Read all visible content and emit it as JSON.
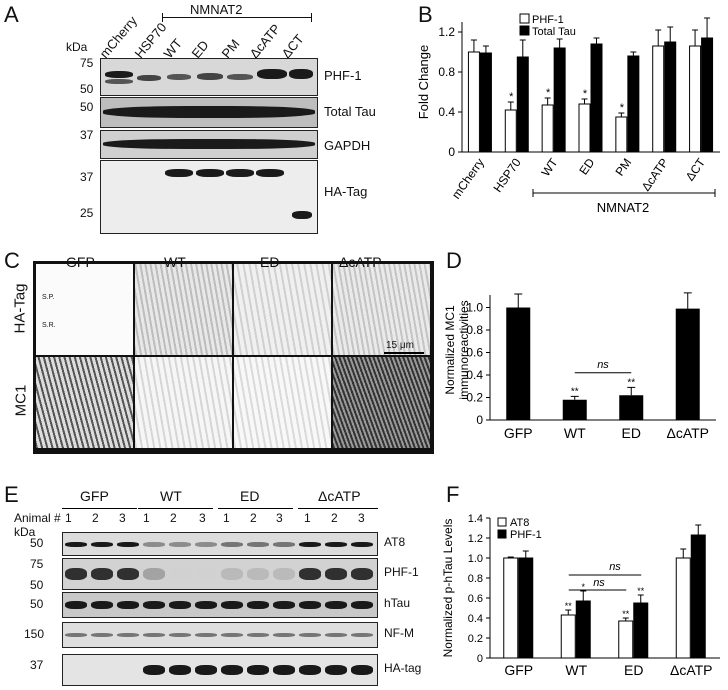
{
  "panelA": {
    "letter": "A",
    "group_label": "NMNAT2",
    "lanes": [
      "mCherry",
      "HSP70",
      "WT",
      "ED",
      "PM",
      "ΔcATP",
      "ΔCT"
    ],
    "kda_header": "kDa",
    "blots": [
      {
        "label": "PHF-1",
        "markers": [
          "75",
          "50"
        ]
      },
      {
        "label": "Total Tau",
        "markers": [
          "50"
        ]
      },
      {
        "label": "GAPDH",
        "markers": [
          "37"
        ]
      },
      {
        "label": "HA-Tag",
        "markers": [
          "37",
          "25"
        ]
      }
    ]
  },
  "panelB": {
    "letter": "B",
    "ylabel": "Fold Change",
    "group_label": "NMNAT2",
    "legend": [
      "PHF-1",
      "Total Tau"
    ]
  },
  "panelC": {
    "letter": "C",
    "columns": [
      "GFP",
      "WT",
      "ED",
      "ΔcATP"
    ],
    "rows": [
      "HA-Tag",
      "MC1"
    ],
    "sp_label": "S.P.",
    "sr_label": "S.R.",
    "scale_label": "15 μm"
  },
  "panelD": {
    "letter": "D",
    "ylabel_line1": "Normalized MC1",
    "ylabel_line2": "immunoreactivities",
    "ns": "ns"
  },
  "panelE": {
    "letter": "E",
    "groups": [
      "GFP",
      "WT",
      "ED",
      "ΔcATP"
    ],
    "animal_label": "Animal #",
    "animal_numbers": [
      "1",
      "2",
      "3"
    ],
    "kda_header": "kDa",
    "blots": [
      {
        "label": "AT8",
        "markers": [
          "50"
        ]
      },
      {
        "label": "PHF-1",
        "markers": [
          "75",
          "50"
        ]
      },
      {
        "label": "hTau",
        "markers": [
          "50"
        ]
      },
      {
        "label": "NF-M",
        "markers": [
          "150"
        ]
      },
      {
        "label": "HA-tag",
        "markers": [
          "37"
        ]
      }
    ]
  },
  "panelF": {
    "letter": "F",
    "ylabel": "Normalized p-hTau Levels",
    "legend": [
      "AT8",
      "PHF-1"
    ],
    "ns": "ns"
  },
  "chart_data": [
    {
      "type": "bar",
      "categories": [
        "mCherry",
        "HSP70",
        "WT",
        "ED",
        "PM",
        "ΔcATP",
        "ΔCT"
      ],
      "series": [
        {
          "name": "PHF-1",
          "values": [
            1.0,
            0.42,
            0.47,
            0.48,
            0.35,
            1.06,
            1.06
          ],
          "errors": [
            0.12,
            0.08,
            0.07,
            0.05,
            0.04,
            0.16,
            0.16
          ],
          "color": "#ffffff"
        },
        {
          "name": "Total Tau",
          "values": [
            0.99,
            0.95,
            1.04,
            1.08,
            0.96,
            1.1,
            1.14
          ],
          "errors": [
            0.07,
            0.17,
            0.09,
            0.06,
            0.04,
            0.15,
            0.2
          ],
          "color": "#000000"
        }
      ],
      "significance": [
        "",
        "*",
        "*",
        "*",
        "*",
        "",
        ""
      ],
      "ylim": [
        0,
        1.4
      ],
      "yticks": [
        "0",
        "0.4",
        "0.8",
        "1.2"
      ]
    },
    {
      "type": "bar",
      "categories": [
        "GFP",
        "WT",
        "ED",
        "ΔcATP"
      ],
      "values": [
        1.0,
        0.18,
        0.22,
        0.99
      ],
      "errors": [
        0.12,
        0.03,
        0.07,
        0.14
      ],
      "significance": [
        "",
        "**",
        "**",
        ""
      ],
      "ylim": [
        0,
        1.2
      ],
      "yticks": [
        "0",
        "0.2",
        "0.4",
        "0.6",
        "0.8",
        "1.0"
      ]
    },
    {
      "type": "bar",
      "categories": [
        "GFP",
        "WT",
        "ED",
        "ΔcATP"
      ],
      "series": [
        {
          "name": "AT8",
          "values": [
            1.0,
            0.43,
            0.37,
            1.0
          ],
          "errors": [
            0.01,
            0.05,
            0.03,
            0.09
          ],
          "color": "#ffffff"
        },
        {
          "name": "PHF-1",
          "values": [
            1.0,
            0.57,
            0.55,
            1.23
          ],
          "errors": [
            0.07,
            0.1,
            0.08,
            0.1
          ],
          "color": "#000000"
        }
      ],
      "significance": [
        [
          "",
          ""
        ],
        [
          "**",
          "*"
        ],
        [
          "**",
          "**"
        ],
        [
          "",
          ""
        ]
      ],
      "ylim": [
        0,
        1.4
      ],
      "yticks": [
        "0",
        "0.2",
        "0.4",
        "0.6",
        "0.8",
        "1.0",
        "1.2",
        "1.4"
      ]
    }
  ]
}
